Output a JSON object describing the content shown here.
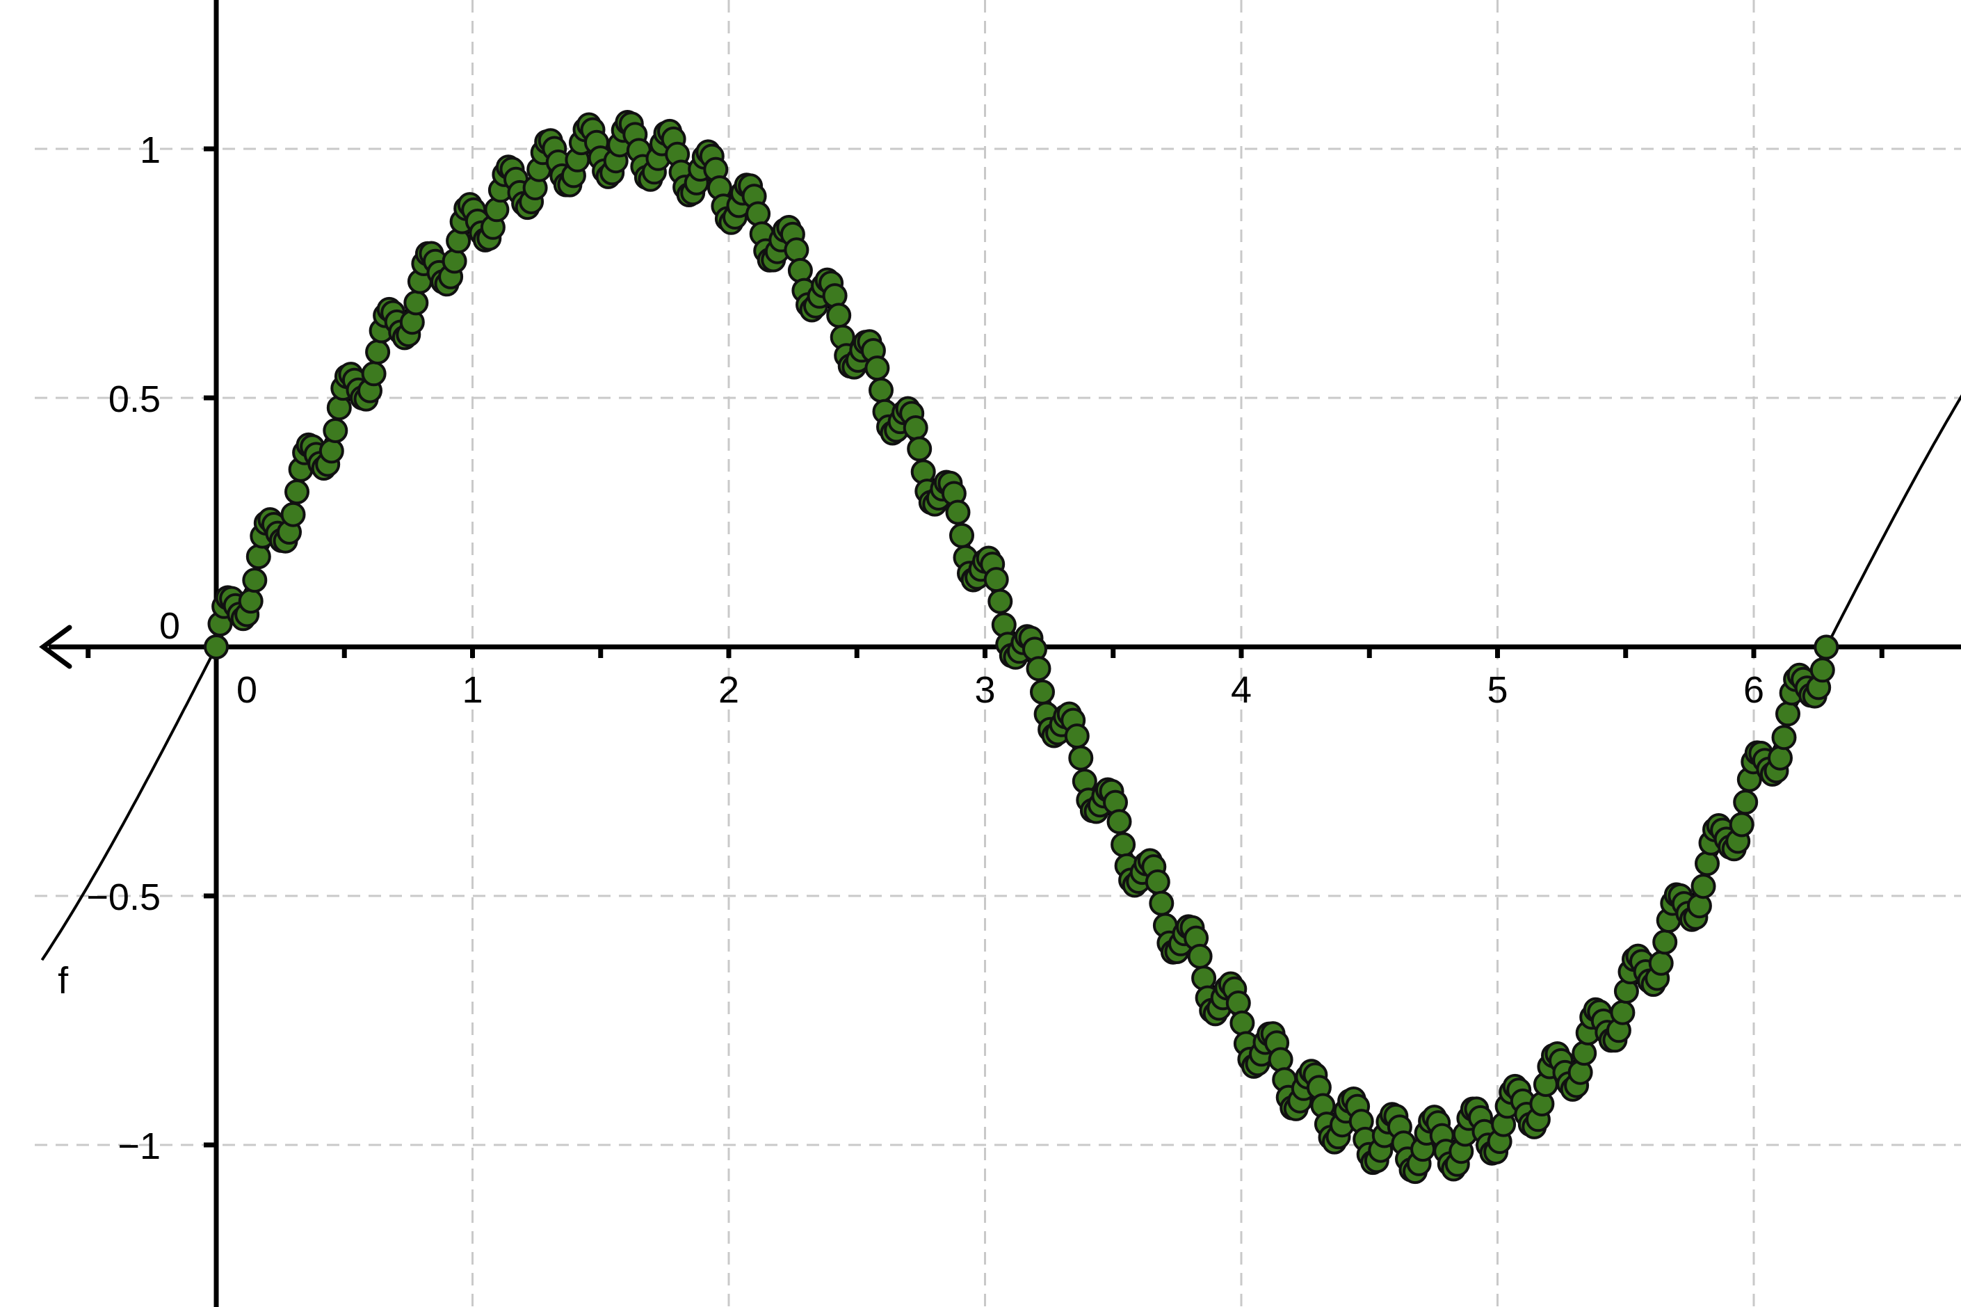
{
  "chart_data": {
    "type": "scatter",
    "title": "",
    "xlabel": "",
    "ylabel": "",
    "xlim": [
      -0.68,
      6.96
    ],
    "ylim": [
      -1.32,
      1.3
    ],
    "grid": true,
    "grid_style": "dashed",
    "x_ticks": [
      0,
      1,
      2,
      3,
      4,
      5,
      6
    ],
    "x_tick_labels": [
      "0",
      "1",
      "2",
      "3",
      "4",
      "5",
      "6"
    ],
    "y_ticks": [
      -1,
      -0.5,
      0.5,
      1
    ],
    "y_tick_labels": [
      "−1",
      "−0.5",
      "0.5",
      "1"
    ],
    "origin_label": "0",
    "x_minor_step": 0.5,
    "series": [
      {
        "name": "f",
        "kind": "line",
        "function": "sin(x)",
        "domain": [
          -0.68,
          6.96
        ],
        "color": "#000000"
      },
      {
        "kind": "points",
        "description_values": {
          "x_start": 0,
          "x_end": 6.283,
          "count": 420,
          "base": "sin(x)",
          "ripple_amplitude": 0.055,
          "ripple_count": 40
        },
        "marker_fill": "#3d7a1f",
        "marker_stroke": "#111111"
      }
    ],
    "annotations": [
      {
        "text": "f",
        "at_x": -0.64,
        "at_y": -0.64
      }
    ]
  }
}
